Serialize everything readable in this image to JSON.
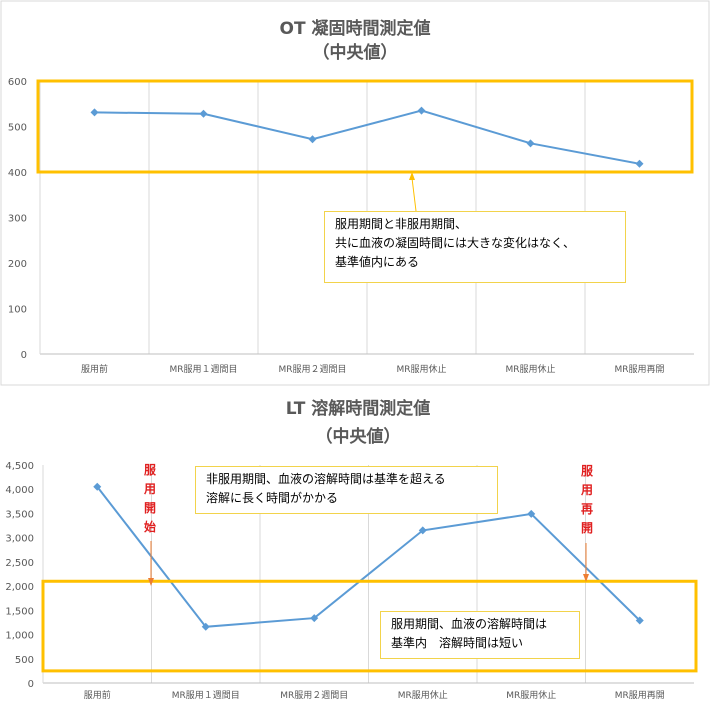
{
  "charts": [
    {
      "title_line1": "OT 凝固時間測定値",
      "title_line2": "（中央値）",
      "notes": [
        {
          "lines": [
            "服用期間と非服用期間、",
            "共に血液の凝固時間には大きな変化はなく、",
            "基準値内にある"
          ]
        }
      ],
      "vertical_labels": []
    },
    {
      "title_line1": "LT 溶解時間測定値",
      "title_line2": "（中央値）",
      "notes": [
        {
          "lines": [
            "非服用期間、血液の溶解時間は基準を超える",
            "溶解に長く時間がかかる"
          ]
        },
        {
          "lines": [
            "服用期間、血液の溶解時間は",
            "基準内　溶解時間は短い"
          ]
        }
      ],
      "vertical_labels": [
        "服用開始",
        "服用再開"
      ]
    }
  ],
  "chart_data": [
    {
      "type": "line",
      "title": "OT 凝固時間測定値（中央値）",
      "categories": [
        "服用前",
        "MR服用１週間目",
        "MR服用２週間目",
        "MR服用休止",
        "MR服用休止",
        "MR服用再開"
      ],
      "values": [
        531,
        528,
        472,
        535,
        463,
        418
      ],
      "yticks": [
        "0",
        "100",
        "200",
        "300",
        "400",
        "500",
        "600"
      ],
      "ylim": [
        0,
        600
      ],
      "grid": "vertical category gridlines",
      "highlight_band": [
        400,
        600
      ],
      "series_color": "#5b9bd5",
      "highlight_color": "#ffc000"
    },
    {
      "type": "line",
      "title": "LT 溶解時間測定値（中央値）",
      "categories": [
        "服用前",
        "MR服用１週間目",
        "MR服用２週間目",
        "MR服用休止",
        "MR服用休止",
        "MR服用再開"
      ],
      "values": [
        4050,
        1160,
        1340,
        3150,
        3490,
        1290
      ],
      "yticks": [
        "0",
        "500",
        "1,000",
        "1,500",
        "2,000",
        "2,500",
        "3,000",
        "3,500",
        "4,000",
        "4,500"
      ],
      "ylim": [
        0,
        4500
      ],
      "grid": "vertical category gridlines",
      "highlight_band": [
        250,
        2100
      ],
      "series_color": "#5b9bd5",
      "highlight_color": "#ffc000",
      "marker_color": "#ed7d31"
    }
  ]
}
